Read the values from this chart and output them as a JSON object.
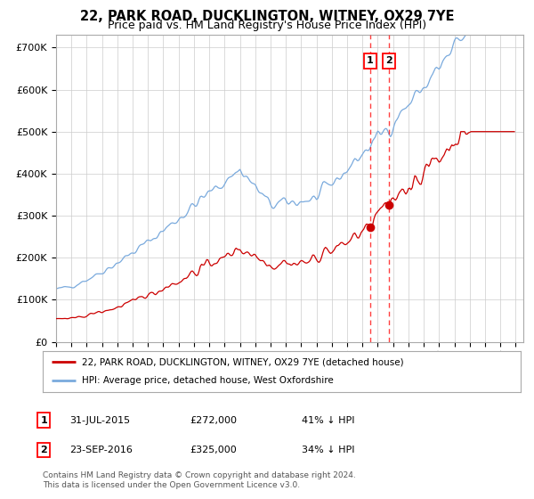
{
  "title": "22, PARK ROAD, DUCKLINGTON, WITNEY, OX29 7YE",
  "subtitle": "Price paid vs. HM Land Registry's House Price Index (HPI)",
  "title_fontsize": 10.5,
  "subtitle_fontsize": 9,
  "background_color": "#ffffff",
  "grid_color": "#cccccc",
  "hpi_color": "#7aaadd",
  "price_color": "#cc0000",
  "ylim": [
    0,
    730000
  ],
  "yticks": [
    0,
    100000,
    200000,
    300000,
    400000,
    500000,
    600000,
    700000
  ],
  "ytick_labels": [
    "£0",
    "£100K",
    "£200K",
    "£300K",
    "£400K",
    "£500K",
    "£600K",
    "£700K"
  ],
  "sale1_date": "31-JUL-2015",
  "sale1_price": 272000,
  "sale1_label": "41% ↓ HPI",
  "sale1_year": 2015.5,
  "sale2_date": "23-SEP-2016",
  "sale2_price": 325000,
  "sale2_label": "34% ↓ HPI",
  "sale2_year": 2016.75,
  "legend_line1": "22, PARK ROAD, DUCKLINGTON, WITNEY, OX29 7YE (detached house)",
  "legend_line2": "HPI: Average price, detached house, West Oxfordshire",
  "footnote": "Contains HM Land Registry data © Crown copyright and database right 2024.\nThis data is licensed under the Open Government Licence v3.0.",
  "start_year": 1995,
  "end_year": 2025
}
